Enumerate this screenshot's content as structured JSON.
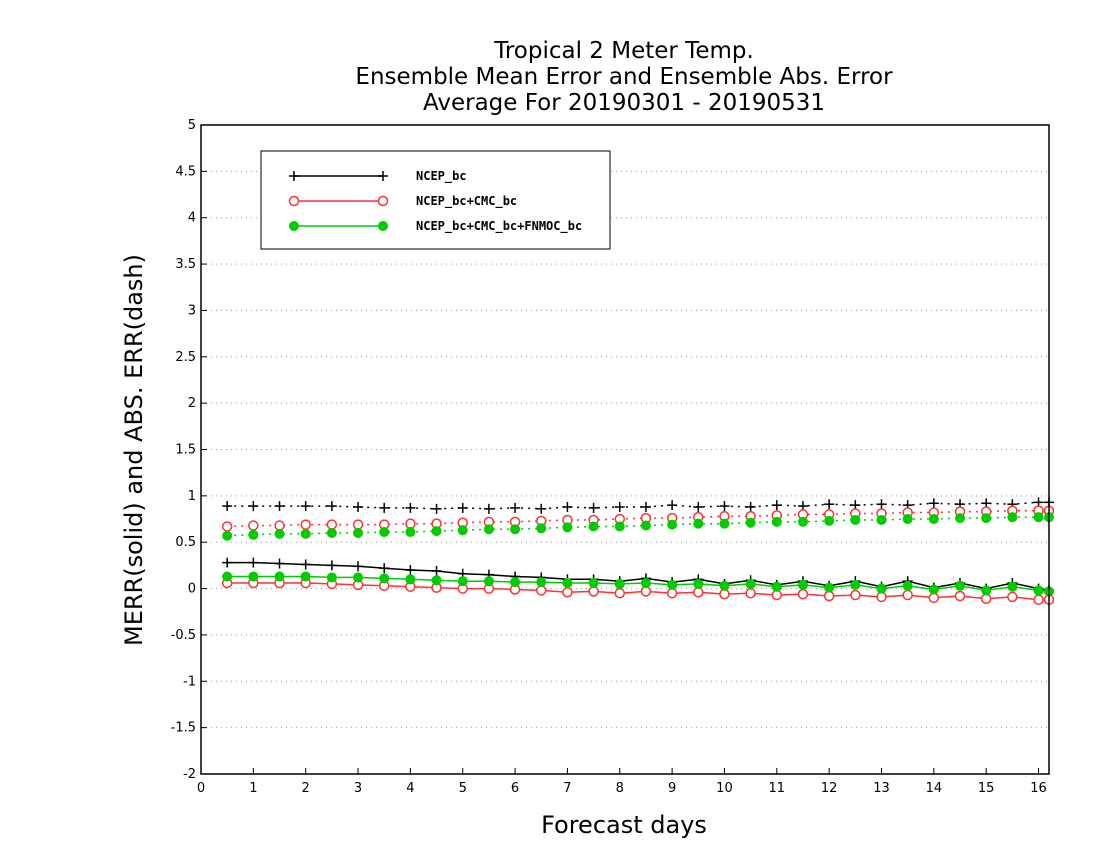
{
  "chart_data": {
    "type": "line",
    "title_lines": [
      "Tropical 2 Meter Temp.",
      "Ensemble Mean Error and Ensemble Abs. Error",
      "Average For 20190301 - 20190531"
    ],
    "xlabel": "Forecast days",
    "ylabel": "MERR(solid) and ABS. ERR(dash)",
    "xlim": [
      0,
      16.2
    ],
    "ylim": [
      -2,
      5
    ],
    "x_ticks": [
      "0",
      "1",
      "2",
      "3",
      "4",
      "5",
      "6",
      "7",
      "8",
      "9",
      "10",
      "11",
      "12",
      "13",
      "14",
      "15",
      "16"
    ],
    "y_ticks": [
      "5",
      "4.5",
      "4",
      "3.5",
      "3",
      "2.5",
      "2",
      "1.5",
      "1",
      "0.5",
      "0",
      "-0.5",
      "-1",
      "-1.5",
      "-2"
    ],
    "grid": "horizontal dotted",
    "legend_position": "top-left",
    "x": [
      0.5,
      1,
      1.5,
      2,
      2.5,
      3,
      3.5,
      4,
      4.5,
      5,
      5.5,
      6,
      6.5,
      7,
      7.5,
      8,
      8.5,
      9,
      9.5,
      10,
      10.5,
      11,
      11.5,
      12,
      12.5,
      13,
      13.5,
      14,
      14.5,
      15,
      15.5,
      16,
      16.2
    ],
    "series": [
      {
        "name": "NCEP_bc",
        "color": "#000000",
        "marker": "plus",
        "merr": [
          0.28,
          0.28,
          0.27,
          0.26,
          0.25,
          0.24,
          0.22,
          0.2,
          0.19,
          0.16,
          0.15,
          0.13,
          0.12,
          0.1,
          0.1,
          0.08,
          0.11,
          0.07,
          0.1,
          0.05,
          0.09,
          0.04,
          0.08,
          0.03,
          0.08,
          0.02,
          0.08,
          0.01,
          0.06,
          0.0,
          0.06,
          0.0,
          -0.02
        ],
        "abs_err": [
          0.89,
          0.89,
          0.89,
          0.89,
          0.89,
          0.88,
          0.87,
          0.87,
          0.86,
          0.87,
          0.86,
          0.87,
          0.86,
          0.88,
          0.87,
          0.88,
          0.88,
          0.9,
          0.88,
          0.89,
          0.88,
          0.9,
          0.89,
          0.91,
          0.9,
          0.91,
          0.9,
          0.92,
          0.91,
          0.92,
          0.91,
          0.93,
          0.93
        ]
      },
      {
        "name": "NCEP_bc+CMC_bc",
        "color": "#ff3030",
        "marker": "open-circle",
        "merr": [
          0.06,
          0.06,
          0.06,
          0.06,
          0.05,
          0.04,
          0.03,
          0.02,
          0.01,
          0.0,
          0.0,
          -0.01,
          -0.02,
          -0.04,
          -0.03,
          -0.05,
          -0.03,
          -0.05,
          -0.04,
          -0.06,
          -0.05,
          -0.07,
          -0.06,
          -0.08,
          -0.07,
          -0.09,
          -0.07,
          -0.1,
          -0.08,
          -0.11,
          -0.09,
          -0.12,
          -0.12
        ],
        "abs_err": [
          0.67,
          0.68,
          0.68,
          0.69,
          0.69,
          0.69,
          0.69,
          0.7,
          0.7,
          0.71,
          0.72,
          0.72,
          0.73,
          0.74,
          0.74,
          0.75,
          0.76,
          0.76,
          0.77,
          0.78,
          0.78,
          0.79,
          0.8,
          0.8,
          0.81,
          0.81,
          0.82,
          0.82,
          0.83,
          0.83,
          0.84,
          0.84,
          0.84
        ]
      },
      {
        "name": "NCEP_bc+CMC_bc+FNMOC_bc",
        "color": "#00cc00",
        "marker": "filled-circle",
        "merr": [
          0.13,
          0.13,
          0.13,
          0.13,
          0.12,
          0.12,
          0.11,
          0.1,
          0.09,
          0.08,
          0.08,
          0.07,
          0.07,
          0.06,
          0.06,
          0.05,
          0.06,
          0.04,
          0.05,
          0.03,
          0.05,
          0.02,
          0.04,
          0.01,
          0.04,
          0.0,
          0.03,
          -0.01,
          0.03,
          -0.02,
          0.02,
          -0.02,
          -0.03
        ],
        "abs_err": [
          0.57,
          0.58,
          0.59,
          0.59,
          0.6,
          0.6,
          0.61,
          0.61,
          0.62,
          0.63,
          0.64,
          0.64,
          0.65,
          0.66,
          0.67,
          0.67,
          0.68,
          0.69,
          0.7,
          0.7,
          0.71,
          0.72,
          0.72,
          0.73,
          0.74,
          0.74,
          0.75,
          0.75,
          0.76,
          0.76,
          0.77,
          0.77,
          0.77
        ]
      }
    ]
  }
}
